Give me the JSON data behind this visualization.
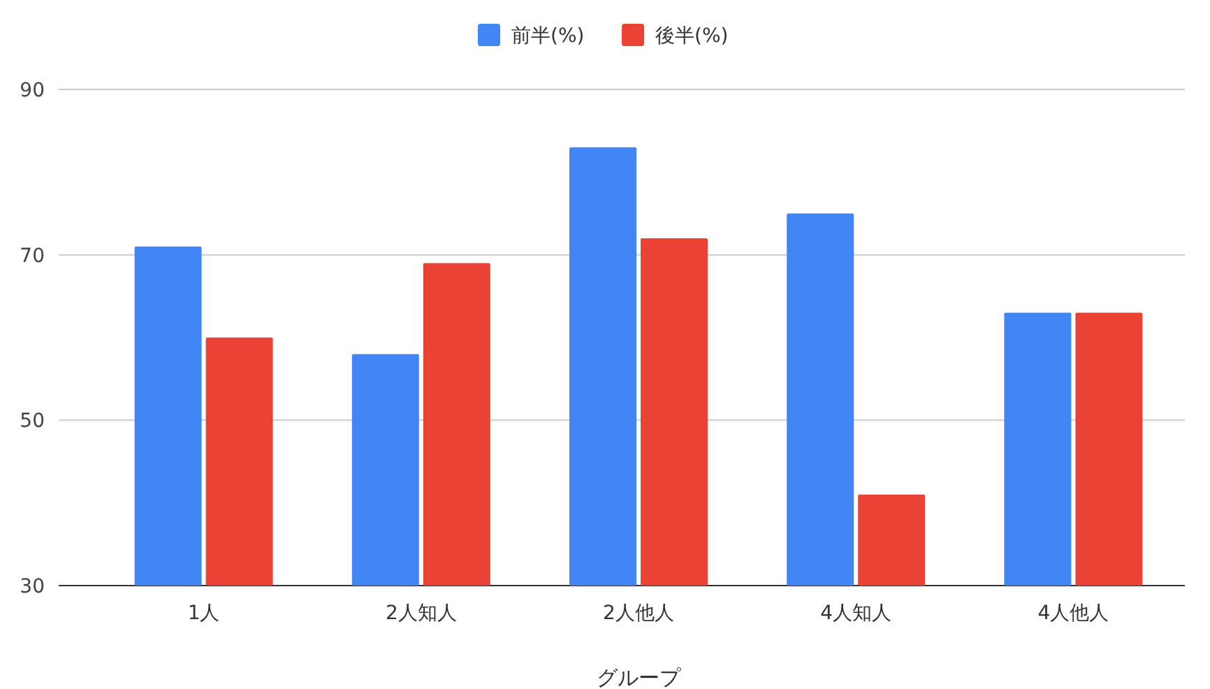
{
  "chart_data": {
    "type": "bar",
    "xlabel": "グループ",
    "categories": [
      "1人",
      "2人知人",
      "2人他人",
      "4人知人",
      "4人他人"
    ],
    "series": [
      {
        "name": "前半(%)",
        "color": "#4285f4",
        "values": [
          71,
          58,
          83,
          75,
          63
        ]
      },
      {
        "name": "後半(%)",
        "color": "#ea4335",
        "values": [
          60,
          69,
          72,
          41,
          63
        ]
      }
    ],
    "ylim": [
      30,
      90
    ],
    "yticks": [
      30,
      50,
      70,
      90
    ],
    "grid": "y",
    "legend": "top"
  }
}
